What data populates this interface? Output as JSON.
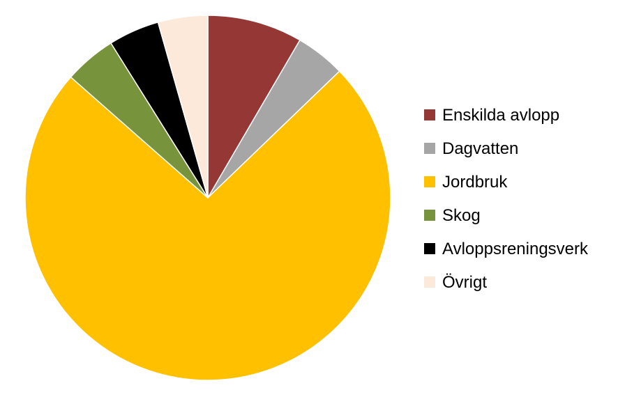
{
  "chart_data": {
    "type": "pie",
    "title": "",
    "categories": [
      "Enskilda avlopp",
      "Dagvatten",
      "Jordbruk",
      "Skog",
      "Avloppsreningsverk",
      "Övrigt"
    ],
    "values": [
      8.4,
      4.4,
      73.7,
      4.6,
      4.5,
      4.4
    ],
    "unit": "%",
    "start_angle_deg": 0,
    "direction": "clockwise",
    "colors": [
      "#953735",
      "#a6a6a6",
      "#ffc000",
      "#77933c",
      "#000000",
      "#fde9d9"
    ],
    "slice_border": "#ffffff",
    "legend_position": "right",
    "data_labels": "none"
  }
}
